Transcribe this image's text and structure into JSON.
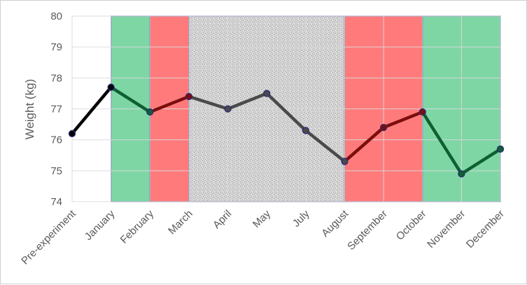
{
  "chart_data": {
    "type": "line",
    "title": "",
    "xlabel": "",
    "ylabel": "Weight (kg)",
    "ylim": [
      74,
      80
    ],
    "yticks": [
      74,
      75,
      76,
      77,
      78,
      79,
      80
    ],
    "grid": true,
    "categories": [
      "Pre-experiment",
      "January",
      "February",
      "March",
      "April",
      "May",
      "July",
      "August",
      "September",
      "October",
      "November",
      "December"
    ],
    "values": [
      76.2,
      77.7,
      76.9,
      77.4,
      77.0,
      77.5,
      76.3,
      75.3,
      76.4,
      76.9,
      74.9,
      75.7
    ],
    "bands": [
      {
        "from": "January",
        "to": "February",
        "kind": "green"
      },
      {
        "from": "February",
        "to": "March",
        "kind": "red"
      },
      {
        "from": "March",
        "to": "August",
        "kind": "gray"
      },
      {
        "from": "August",
        "to": "October",
        "kind": "red"
      },
      {
        "from": "October",
        "to": "December",
        "kind": "green"
      }
    ],
    "colors": {
      "green_band": "#7fd6a5",
      "red_band": "#ff7b7b",
      "gray_band": "#d9d9d9",
      "band_border": "#3b3fa0",
      "line_black": "#000000",
      "line_green": "#0e5f32",
      "line_red": "#7b0d0d",
      "line_gray": "#4a4a4a",
      "gridline": "#d9d9d9",
      "text": "#595959"
    }
  }
}
